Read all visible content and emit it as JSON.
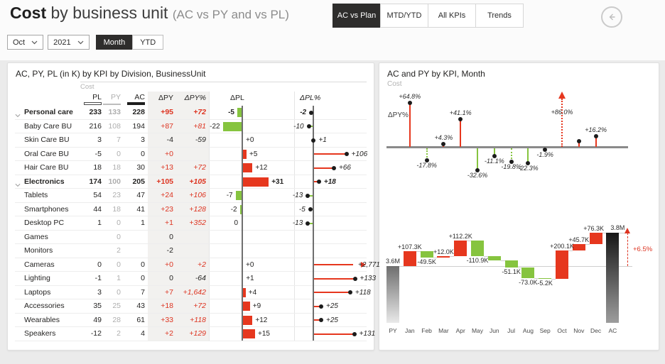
{
  "header": {
    "title_primary": "Cost",
    "title_secondary": " by business unit ",
    "title_note": "(AC vs PY and vs PL)",
    "tabs": [
      {
        "label": "AC vs Plan",
        "active": true
      },
      {
        "label": "MTD/YTD",
        "active": false
      },
      {
        "label": "All KPIs",
        "active": false
      },
      {
        "label": "Trends",
        "active": false
      }
    ],
    "back_icon": "arrow-left-icon"
  },
  "filters": {
    "month_value": "Oct",
    "year_value": "2021",
    "period_options": [
      {
        "label": "Month",
        "active": true
      },
      {
        "label": "YTD",
        "active": false
      }
    ]
  },
  "colors": {
    "accent_red": "#dd3421",
    "bar_red": "#e6371e",
    "bar_green": "#86c43f",
    "dark": "#252423",
    "grey_value": "#aeaeae",
    "axis_grey": "#6f6f6f"
  },
  "table": {
    "title": "AC, PY, PL (in K) by KPI by Division, BusinessUnit",
    "measure_label": "Cost",
    "headers": {
      "pl": "PL",
      "py": "PY",
      "ac": "AC",
      "dpy": "ΔPY",
      "dpy_pct": "ΔPY%",
      "dpl": "ΔPL",
      "dpl_pct": "ΔPL%"
    },
    "rows": [
      {
        "name": "Personal care",
        "bold": true,
        "pl": "233",
        "py": "133",
        "ac": "228",
        "dpy": "+95",
        "dpy_pct": "+72",
        "dpl": {
          "v": -5,
          "label": "-5"
        },
        "dpl_pct": {
          "v": -2,
          "label": "-2",
          "clipped": false
        }
      },
      {
        "name": "Baby Care BU",
        "bold": false,
        "pl": "216",
        "py": "108",
        "ac": "194",
        "dpy": "+87",
        "dpy_pct": "+81",
        "dpl": {
          "v": -22,
          "label": "-22"
        },
        "dpl_pct": {
          "v": -10,
          "label": "-10",
          "clipped": false
        }
      },
      {
        "name": "Skin Care BU",
        "bold": false,
        "pl": "3",
        "py": "7",
        "ac": "3",
        "dpy": "-4",
        "dpy_pct": "-59",
        "dpl": {
          "v": 0,
          "label": "+0"
        },
        "dpl_pct": {
          "v": 1,
          "label": "+1",
          "clipped": false
        }
      },
      {
        "name": "Oral Care BU",
        "bold": false,
        "pl": "-5",
        "py": "0",
        "ac": "0",
        "dpy": "+0",
        "dpy_pct": "",
        "dpl": {
          "v": 5,
          "label": "+5"
        },
        "dpl_pct": {
          "v": 106,
          "label": "+106",
          "clipped": false
        }
      },
      {
        "name": "Hair Care BU",
        "bold": false,
        "pl": "18",
        "py": "18",
        "ac": "30",
        "dpy": "+13",
        "dpy_pct": "+72",
        "dpl": {
          "v": 12,
          "label": "+12"
        },
        "dpl_pct": {
          "v": 66,
          "label": "+66",
          "clipped": false
        }
      },
      {
        "name": "Electronics",
        "bold": true,
        "pl": "174",
        "py": "100",
        "ac": "205",
        "dpy": "+105",
        "dpy_pct": "+105",
        "dpl": {
          "v": 31,
          "label": "+31"
        },
        "dpl_pct": {
          "v": 18,
          "label": "+18",
          "clipped": false
        }
      },
      {
        "name": "Tablets",
        "bold": false,
        "pl": "54",
        "py": "23",
        "ac": "47",
        "dpy": "+24",
        "dpy_pct": "+106",
        "dpl": {
          "v": -7,
          "label": "-7"
        },
        "dpl_pct": {
          "v": -13,
          "label": "-13",
          "clipped": false
        }
      },
      {
        "name": "Smartphones",
        "bold": false,
        "pl": "44",
        "py": "18",
        "ac": "41",
        "dpy": "+23",
        "dpy_pct": "+128",
        "dpl": {
          "v": -2,
          "label": "-2"
        },
        "dpl_pct": {
          "v": -5,
          "label": "-5",
          "clipped": false
        }
      },
      {
        "name": "Desktop PC",
        "bold": false,
        "pl": "1",
        "py": "0",
        "ac": "1",
        "dpy": "+1",
        "dpy_pct": "+352",
        "dpl": {
          "v": 0,
          "label": "0"
        },
        "dpl_pct": {
          "v": -13,
          "label": "-13",
          "clipped": false
        }
      },
      {
        "name": "Games",
        "bold": false,
        "pl": "",
        "py": "0",
        "ac": "",
        "dpy": "0",
        "dpy_pct": "",
        "dpl": {
          "v": null,
          "label": ""
        },
        "dpl_pct": {
          "v": null,
          "label": "",
          "clipped": false
        }
      },
      {
        "name": "Monitors",
        "bold": false,
        "pl": "",
        "py": "2",
        "ac": "",
        "dpy": "-2",
        "dpy_pct": "",
        "dpl": {
          "v": null,
          "label": ""
        },
        "dpl_pct": {
          "v": null,
          "label": "",
          "clipped": false
        }
      },
      {
        "name": "Cameras",
        "bold": false,
        "pl": "0",
        "py": "0",
        "ac": "0",
        "dpy": "+0",
        "dpy_pct": "+2",
        "dpl": {
          "v": 0,
          "label": "+0"
        },
        "dpl_pct": {
          "v": 2771,
          "label": "+2,771",
          "clipped": true
        }
      },
      {
        "name": "Lighting",
        "bold": false,
        "pl": "-1",
        "py": "1",
        "ac": "0",
        "dpy": "0",
        "dpy_pct": "-64",
        "dpl": {
          "v": 1,
          "label": "+1"
        },
        "dpl_pct": {
          "v": 133,
          "label": "+133",
          "clipped": false
        }
      },
      {
        "name": "Laptops",
        "bold": false,
        "pl": "3",
        "py": "0",
        "ac": "7",
        "dpy": "+7",
        "dpy_pct": "+1,642",
        "dpl": {
          "v": 4,
          "label": "+4"
        },
        "dpl_pct": {
          "v": 118,
          "label": "+118",
          "clipped": false
        }
      },
      {
        "name": "Accessories",
        "bold": false,
        "pl": "35",
        "py": "25",
        "ac": "43",
        "dpy": "+18",
        "dpy_pct": "+72",
        "dpl": {
          "v": 9,
          "label": "+9"
        },
        "dpl_pct": {
          "v": 25,
          "label": "+25",
          "clipped": false
        }
      },
      {
        "name": "Wearables",
        "bold": false,
        "pl": "49",
        "py": "28",
        "ac": "61",
        "dpy": "+33",
        "dpy_pct": "+118",
        "dpl": {
          "v": 12,
          "label": "+12"
        },
        "dpl_pct": {
          "v": 25,
          "label": "+25",
          "clipped": false
        }
      },
      {
        "name": "Speakers",
        "bold": false,
        "pl": "-12",
        "py": "2",
        "ac": "4",
        "dpy": "+2",
        "dpy_pct": "+129",
        "dpl": {
          "v": 15,
          "label": "+15"
        },
        "dpl_pct": {
          "v": 131,
          "label": "+131",
          "clipped": false
        }
      }
    ]
  },
  "chart_panel": {
    "title": "AC and PY by KPI, Month",
    "measure_label": "Cost"
  },
  "chart_data": [
    {
      "type": "lollipop",
      "name": "delta-py-percent-by-month",
      "ylabel": "ΔPY%",
      "categories": [
        "Jan",
        "Feb",
        "Mar",
        "Apr",
        "May",
        "Jun",
        "Jul",
        "Aug",
        "Sep",
        "Oct",
        "Nov",
        "Dec"
      ],
      "values": [
        64.8,
        -17.8,
        4.3,
        41.1,
        -32.6,
        -11.1,
        -19.8,
        -22.3,
        -1.9,
        86.0,
        8.0,
        16.2
      ],
      "labels": [
        "+64.8%",
        "-17.8%",
        "+4.3%",
        "+41.1%",
        "-32.6%",
        "-11.1%",
        "-19.8%",
        "-22.3%",
        "-1.9%",
        "+86.0%",
        "",
        "+16.2%"
      ],
      "dashed": [
        false,
        true,
        false,
        false,
        false,
        false,
        true,
        false,
        false,
        true,
        false,
        false
      ],
      "clipped": [
        false,
        false,
        false,
        false,
        false,
        false,
        false,
        false,
        false,
        true,
        false,
        false
      ],
      "positive_color": "#e6371e",
      "negative_color": "#86c43f"
    },
    {
      "type": "waterfall",
      "name": "cost-bridge-py-to-ac",
      "categories": [
        "PY",
        "Jan",
        "Feb",
        "Mar",
        "Apr",
        "May",
        "Jun",
        "Jul",
        "Aug",
        "Sep",
        "Oct",
        "Nov",
        "Dec",
        "AC"
      ],
      "start_label": "3.6M",
      "end_label": "3.8M",
      "deltas": [
        107.3,
        -49.5,
        12.0,
        112.2,
        -110.9,
        -31.0,
        -51.1,
        -73.0,
        -5.2,
        200.1,
        45.7,
        76.3
      ],
      "delta_labels": [
        "+107.3K",
        "-49.5K",
        "+12.0K",
        "+112.2K",
        "-110.9K",
        "",
        "-51.1K",
        "-73.0K",
        "-5.2K",
        "+200.1K",
        "+45.7K",
        "+76.3K"
      ],
      "variance_label": "+6.5%",
      "units": "K",
      "positive_color": "#e6371e",
      "negative_color": "#86c43f"
    }
  ]
}
